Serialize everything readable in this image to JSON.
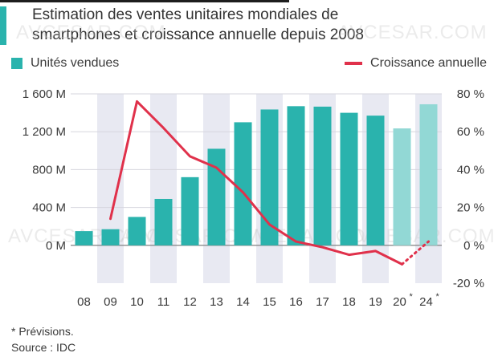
{
  "header": {
    "title_line1": "Estimation des ventes unitaires mondiales de",
    "title_line2": "smartphones et croissance annuelle depuis 2008"
  },
  "legend": {
    "units": "Unités vendues",
    "growth": "Croissance annuelle"
  },
  "notes": {
    "forecast": "* Prévisions.",
    "source": "Source : IDC"
  },
  "watermark": "AVCESAR.COM",
  "colors": {
    "bar": "#2ab3ad",
    "bar_forecast": "#92d8d5",
    "line": "#e0314b",
    "band": "#e8e9f2"
  },
  "chart_data": {
    "type": "bar",
    "title": "Estimation des ventes unitaires mondiales de smartphones et croissance annuelle depuis 2008",
    "categories": [
      "08",
      "09",
      "10",
      "11",
      "12",
      "13",
      "14",
      "15",
      "16",
      "17",
      "18",
      "19",
      "20",
      "24"
    ],
    "category_stars": [
      "",
      "",
      "",
      "",
      "",
      "",
      "",
      "",
      "",
      "",
      "",
      "",
      "*",
      "*"
    ],
    "forecast": [
      false,
      false,
      false,
      false,
      false,
      false,
      false,
      false,
      false,
      false,
      false,
      false,
      true,
      true
    ],
    "series": [
      {
        "name": "Unités vendues",
        "axis": "left",
        "unit": "M",
        "values": [
          150,
          170,
          300,
          490,
          720,
          1020,
          1300,
          1435,
          1470,
          1465,
          1400,
          1370,
          1235,
          1490
        ]
      },
      {
        "name": "Croissance annuelle",
        "axis": "right",
        "type": "line",
        "unit": "%",
        "values": [
          null,
          14,
          76,
          62,
          47,
          41,
          28,
          11,
          2,
          -1,
          -5,
          -3,
          -10,
          2
        ]
      }
    ],
    "left_axis": {
      "ticks": [
        "0 M",
        "400 M",
        "800 M",
        "1 200 M",
        "1 600 M"
      ],
      "values": [
        0,
        400,
        800,
        1200,
        1600
      ],
      "ylim": [
        -400,
        1600
      ]
    },
    "right_axis": {
      "ticks": [
        "-20 %",
        "0 %",
        "20 %",
        "40 %",
        "60 %",
        "80 %"
      ],
      "values": [
        -20,
        0,
        20,
        40,
        60,
        80
      ],
      "ylim": [
        -20,
        80
      ]
    }
  }
}
